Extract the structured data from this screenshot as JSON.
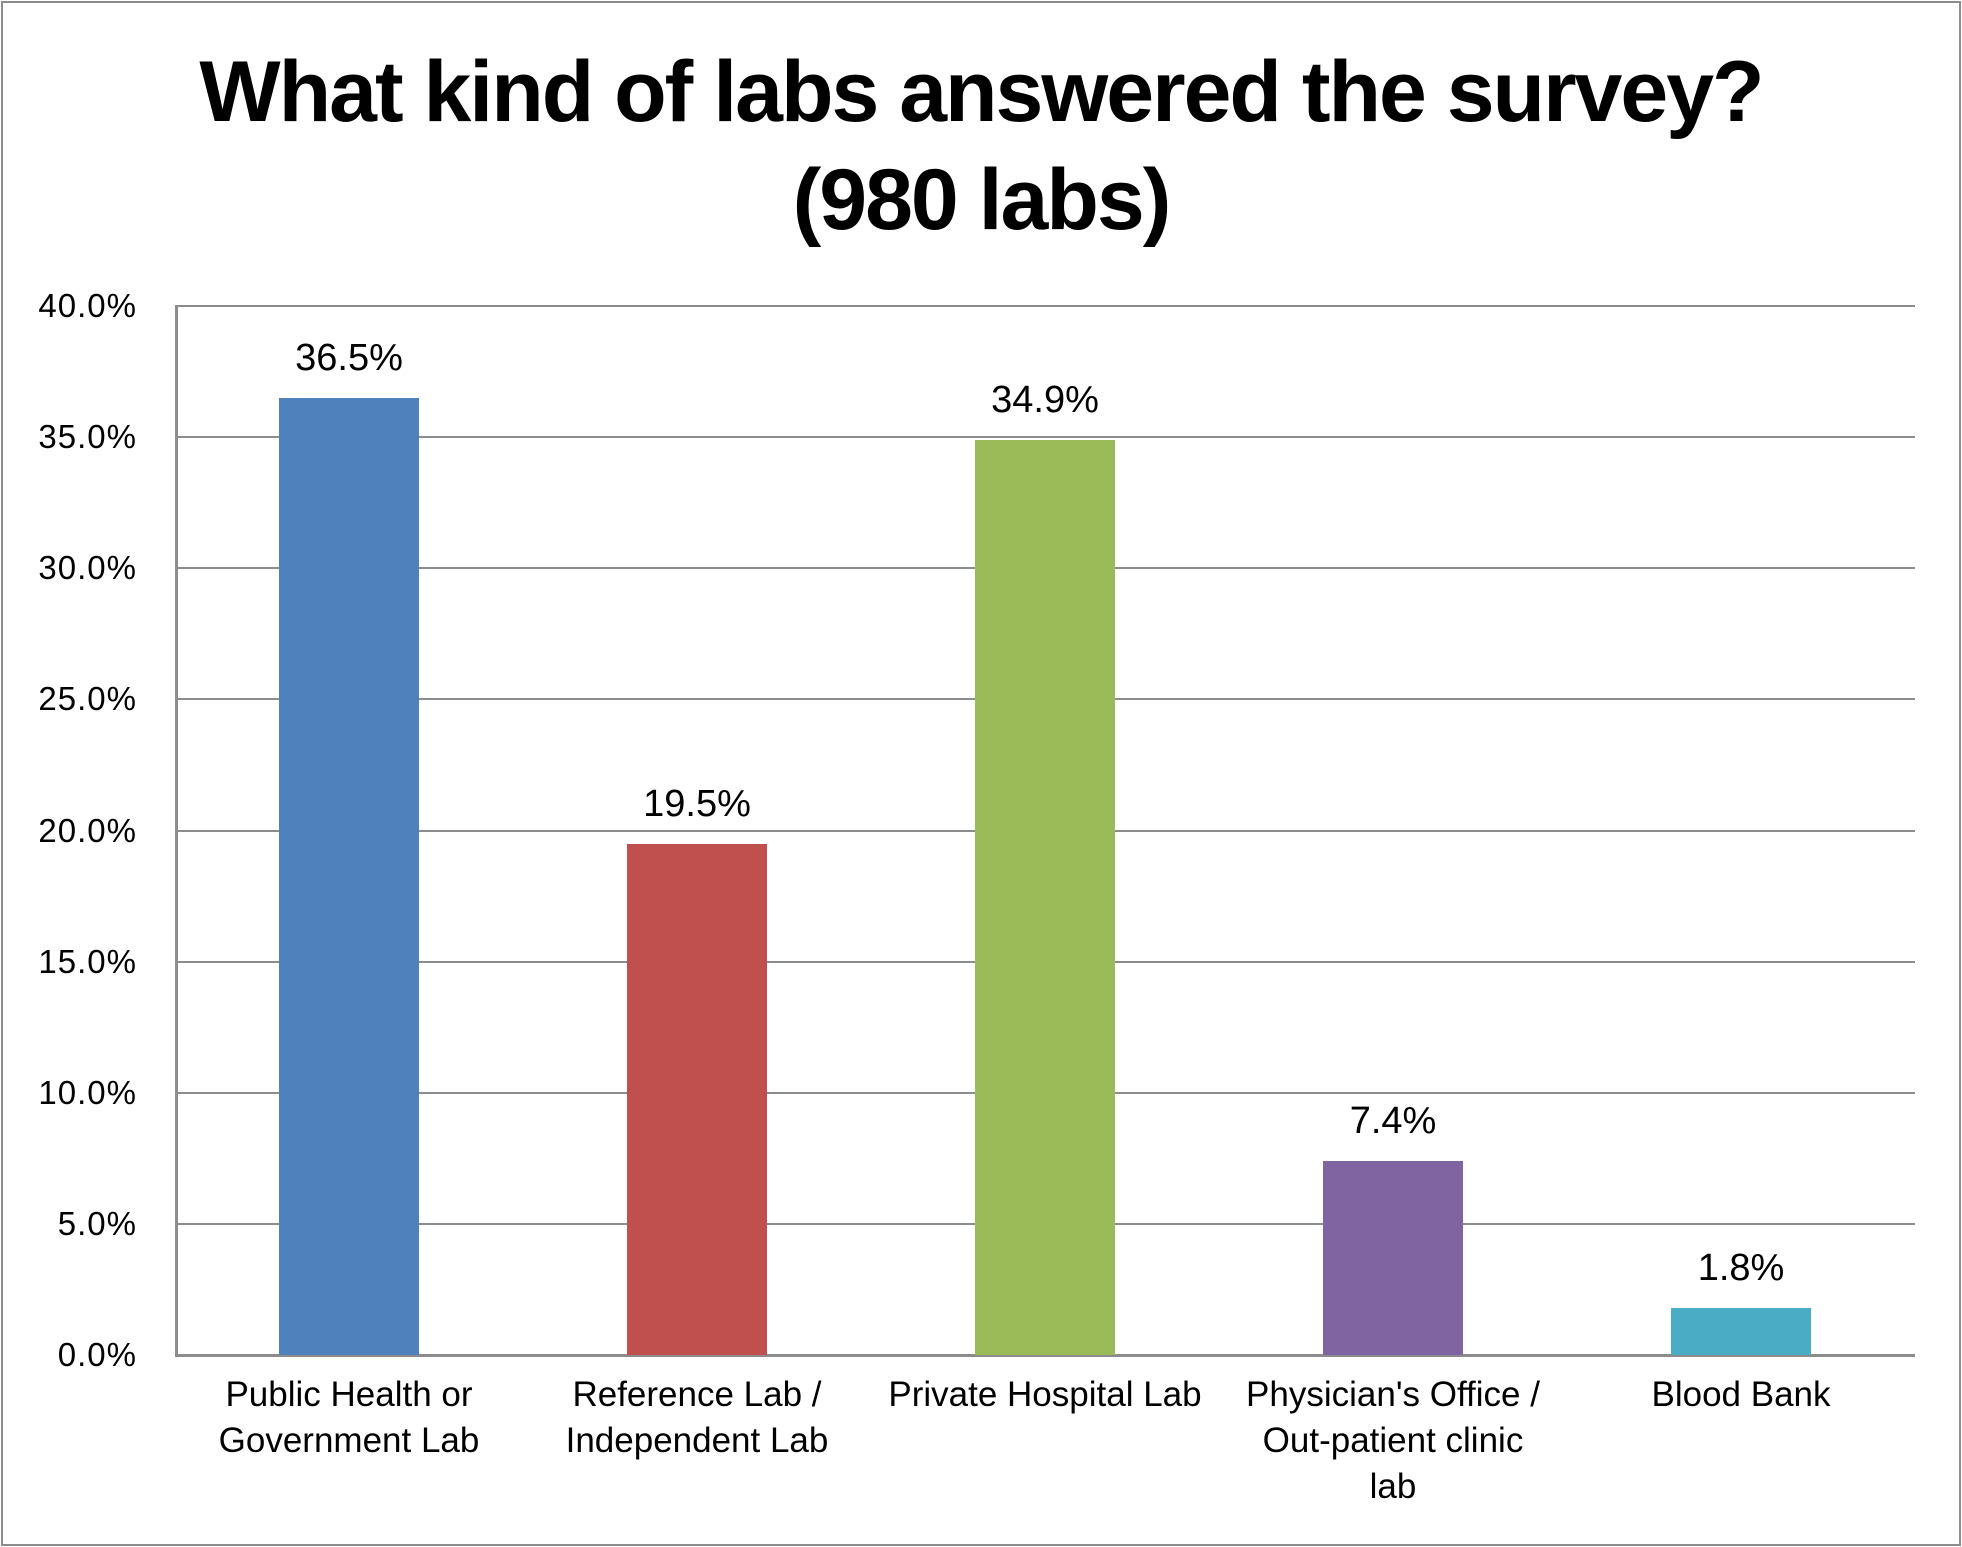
{
  "chart_data": {
    "type": "bar",
    "title": "What kind of labs answered the survey?",
    "subtitle": "(980 labs)",
    "xlabel": "",
    "ylabel": "",
    "categories": [
      "Public Health or Government Lab",
      "Reference Lab / Independent Lab",
      "Private Hospital Lab",
      "Physician's Office / Out-patient clinic lab",
      "Blood Bank"
    ],
    "values": [
      36.5,
      19.5,
      34.9,
      7.4,
      1.8
    ],
    "data_labels": [
      "36.5%",
      "19.5%",
      "34.9%",
      "7.4%",
      "1.8%"
    ],
    "colors": [
      "#4f81bd",
      "#c0504d",
      "#9bbb59",
      "#8064a2",
      "#4bacc6"
    ],
    "ylim": [
      0,
      40
    ],
    "yticks": [
      "0.0%",
      "5.0%",
      "10.0%",
      "15.0%",
      "20.0%",
      "25.0%",
      "30.0%",
      "35.0%",
      "40.0%"
    ],
    "grid": true,
    "legend": "none"
  },
  "title": {
    "line1": "What kind of labs answered the survey?",
    "line2": "(980 labs)"
  },
  "axis": {
    "gridline_color": "#8c8c8c"
  },
  "xticks": [
    {
      "line1": "Public Health or",
      "line2": "Government Lab",
      "line3": ""
    },
    {
      "line1": "Reference Lab /",
      "line2": "Independent Lab",
      "line3": ""
    },
    {
      "line1": "Private Hospital Lab",
      "line2": "",
      "line3": ""
    },
    {
      "line1": "Physician's Office /",
      "line2": "Out-patient clinic",
      "line3": "lab"
    },
    {
      "line1": "Blood Bank",
      "line2": "",
      "line3": ""
    }
  ]
}
